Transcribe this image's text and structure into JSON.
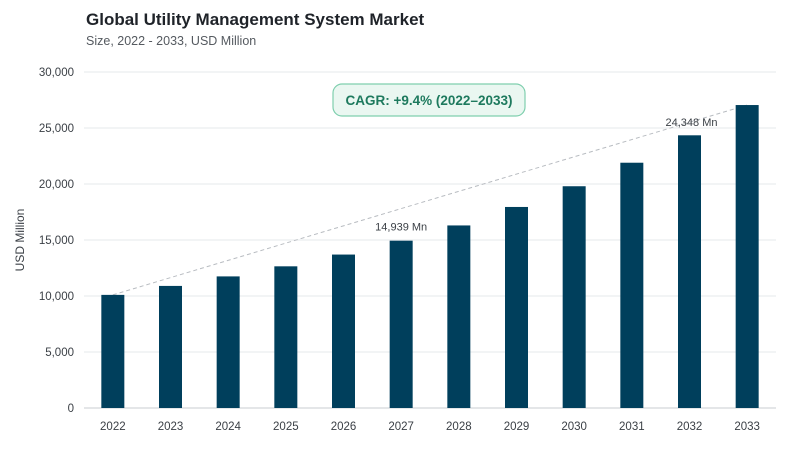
{
  "chart_data": {
    "type": "bar",
    "title": "Global Utility Management System Market",
    "subtitle": "Size, 2022 - 2033, USD Million",
    "ylabel": "USD Million",
    "xlabel": "",
    "categories": [
      "2022",
      "2023",
      "2024",
      "2025",
      "2026",
      "2027",
      "2028",
      "2029",
      "2030",
      "2031",
      "2032",
      "2033"
    ],
    "values": [
      10100,
      10900,
      11750,
      12650,
      13700,
      14939,
      16300,
      17950,
      19800,
      21900,
      24348,
      27050
    ],
    "ylim": [
      0,
      30000
    ],
    "yticks": [
      0,
      5000,
      10000,
      15000,
      20000,
      25000,
      30000
    ],
    "ytick_labels": [
      "0",
      "5,000",
      "10,000",
      "15,000",
      "20,000",
      "25,000",
      "30,000"
    ],
    "grid": true,
    "bar_color": "#003f5c",
    "annotations": {
      "cagr": "CAGR: +9.4% (2022–2033)",
      "label_2027": "14,939 Mn",
      "label_2032": "24,348 Mn"
    },
    "cagr_color": "#1e7a5e",
    "cagr_fill": "#eaf7f1",
    "cagr_border": "#7fcfae"
  }
}
